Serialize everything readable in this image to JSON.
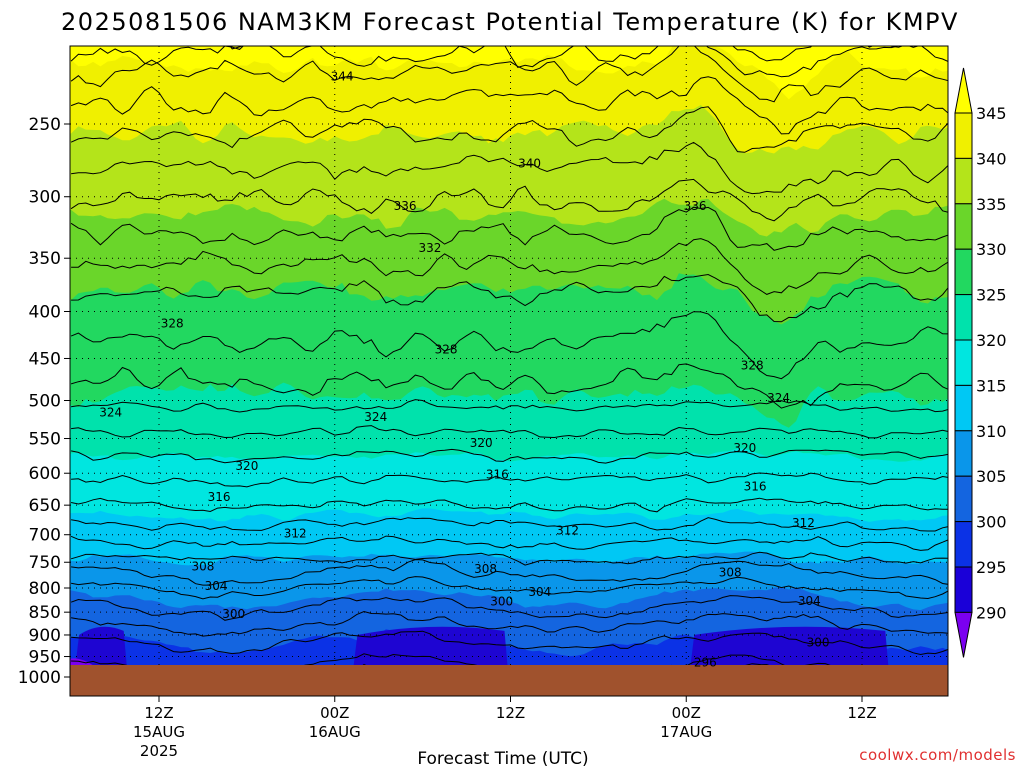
{
  "chart_data": {
    "type": "heatmap",
    "title": "2025081506 NAM3KM Forecast Potential Temperature (K) for KMPV",
    "xlabel": "Forecast Time (UTC)",
    "ylabel": "",
    "x_ticks": [
      {
        "hour": 6,
        "label": [
          "12Z",
          "15AUG",
          "2025"
        ]
      },
      {
        "hour": 18,
        "label": [
          "00Z",
          "16AUG"
        ]
      },
      {
        "hour": 30,
        "label": [
          "12Z"
        ]
      },
      {
        "hour": 42,
        "label": [
          "00Z",
          "17AUG"
        ]
      },
      {
        "hour": 54,
        "label": [
          "12Z"
        ]
      }
    ],
    "x_range_hours": [
      0,
      60
    ],
    "y_ticks": [
      250,
      300,
      350,
      400,
      450,
      500,
      550,
      600,
      650,
      700,
      750,
      800,
      850,
      900,
      950,
      1000
    ],
    "y_range_hpa": [
      200,
      1000
    ],
    "y_scale": "log-pressure",
    "surface_pressure_hpa": 975,
    "grid": true,
    "colorbar": {
      "levels": [
        290,
        295,
        300,
        305,
        310,
        315,
        320,
        325,
        330,
        335,
        340,
        345
      ],
      "colors": [
        "#7b00f0",
        "#1a00d8",
        "#0b32e6",
        "#1465e0",
        "#0a96ea",
        "#00c8f4",
        "#00e6e0",
        "#00e2ac",
        "#22d860",
        "#6ad62a",
        "#b4e41a",
        "#f0f000",
        "#ffff00"
      ],
      "placement": "right"
    },
    "contour_interval_K": 2,
    "contour_labels": [
      {
        "value": 344,
        "hour": 18.5,
        "p": 222
      },
      {
        "value": 340,
        "hour": 31.3,
        "p": 276
      },
      {
        "value": 336,
        "hour": 22.8,
        "p": 307
      },
      {
        "value": 336,
        "hour": 42.6,
        "p": 307
      },
      {
        "value": 332,
        "hour": 24.5,
        "p": 341
      },
      {
        "value": 328,
        "hour": 6.9,
        "p": 412
      },
      {
        "value": 328,
        "hour": 25.6,
        "p": 440
      },
      {
        "value": 328,
        "hour": 46.5,
        "p": 458
      },
      {
        "value": 324,
        "hour": 2.7,
        "p": 515
      },
      {
        "value": 324,
        "hour": 20.8,
        "p": 521
      },
      {
        "value": 324,
        "hour": 48.3,
        "p": 497
      },
      {
        "value": 320,
        "hour": 28.0,
        "p": 556
      },
      {
        "value": 320,
        "hour": 46.0,
        "p": 563
      },
      {
        "value": 320,
        "hour": 12.0,
        "p": 589
      },
      {
        "value": 316,
        "hour": 29.1,
        "p": 602
      },
      {
        "value": 316,
        "hour": 46.7,
        "p": 620
      },
      {
        "value": 316,
        "hour": 10.1,
        "p": 637
      },
      {
        "value": 312,
        "hour": 15.3,
        "p": 698
      },
      {
        "value": 312,
        "hour": 33.9,
        "p": 693
      },
      {
        "value": 312,
        "hour": 50.0,
        "p": 680
      },
      {
        "value": 308,
        "hour": 9.0,
        "p": 758
      },
      {
        "value": 308,
        "hour": 28.3,
        "p": 763
      },
      {
        "value": 308,
        "hour": 45.0,
        "p": 770
      },
      {
        "value": 304,
        "hour": 9.9,
        "p": 796
      },
      {
        "value": 304,
        "hour": 32.0,
        "p": 808
      },
      {
        "value": 304,
        "hour": 50.4,
        "p": 827
      },
      {
        "value": 300,
        "hour": 11.1,
        "p": 854
      },
      {
        "value": 300,
        "hour": 29.4,
        "p": 828
      },
      {
        "value": 300,
        "hour": 51.0,
        "p": 917
      },
      {
        "value": 296,
        "hour": 43.3,
        "p": 964
      }
    ]
  },
  "credit": "coolwx.com/models"
}
